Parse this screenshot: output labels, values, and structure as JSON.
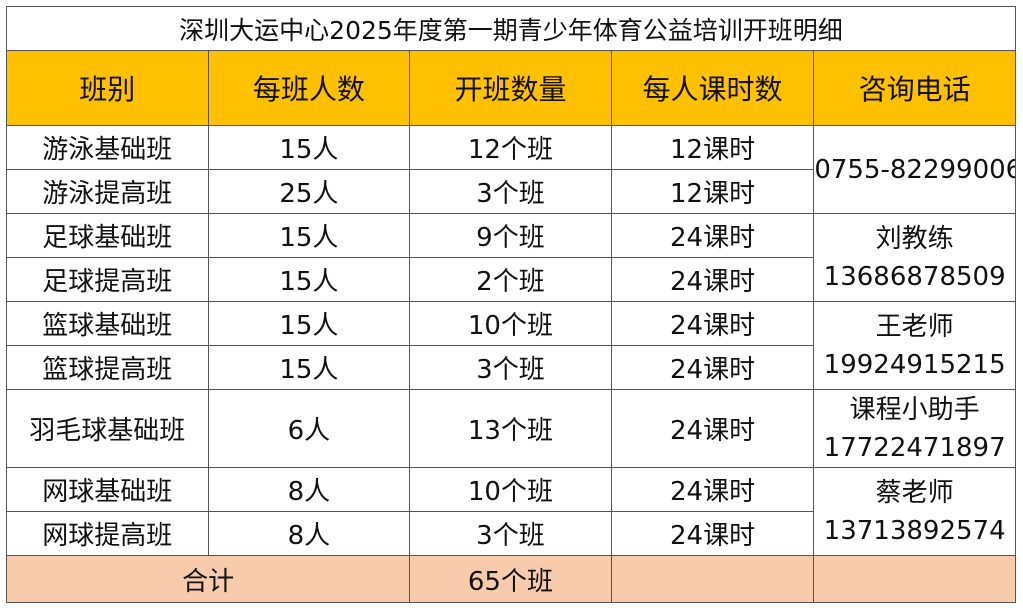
{
  "title": "深圳大运中心2025年度第一期青少年体育公益培训开班明细",
  "colors": {
    "header_bg": "#ffc000",
    "total_bg": "#f8cbad",
    "border": "#555555"
  },
  "headers": [
    "班别",
    "每班人数",
    "开班数量",
    "每人课时数",
    "咨询电话"
  ],
  "rows": [
    {
      "class": "游泳基础班",
      "size": "15人",
      "count": "12个班",
      "hours": "12课时"
    },
    {
      "class": "游泳提高班",
      "size": "25人",
      "count": "3个班",
      "hours": "12课时"
    },
    {
      "class": "足球基础班",
      "size": "15人",
      "count": "9个班",
      "hours": "24课时"
    },
    {
      "class": "足球提高班",
      "size": "15人",
      "count": "2个班",
      "hours": "24课时"
    },
    {
      "class": "篮球基础班",
      "size": "15人",
      "count": "10个班",
      "hours": "24课时"
    },
    {
      "class": "篮球提高班",
      "size": "15人",
      "count": "3个班",
      "hours": "24课时"
    },
    {
      "class": "羽毛球基础班",
      "size": "6人",
      "count": "13个班",
      "hours": "24课时"
    },
    {
      "class": "网球基础班",
      "size": "8人",
      "count": "10个班",
      "hours": "24课时"
    },
    {
      "class": "网球提高班",
      "size": "8人",
      "count": "3个班",
      "hours": "24课时"
    }
  ],
  "contacts": [
    {
      "name": "",
      "phone": "0755-82299006"
    },
    {
      "name": "刘教练",
      "phone": "13686878509"
    },
    {
      "name": "王老师",
      "phone": "19924915215"
    },
    {
      "name": "课程小助手",
      "phone": "17722471897"
    },
    {
      "name": "蔡老师",
      "phone": "13713892574"
    }
  ],
  "total": {
    "label": "合计",
    "count": "65个班"
  }
}
